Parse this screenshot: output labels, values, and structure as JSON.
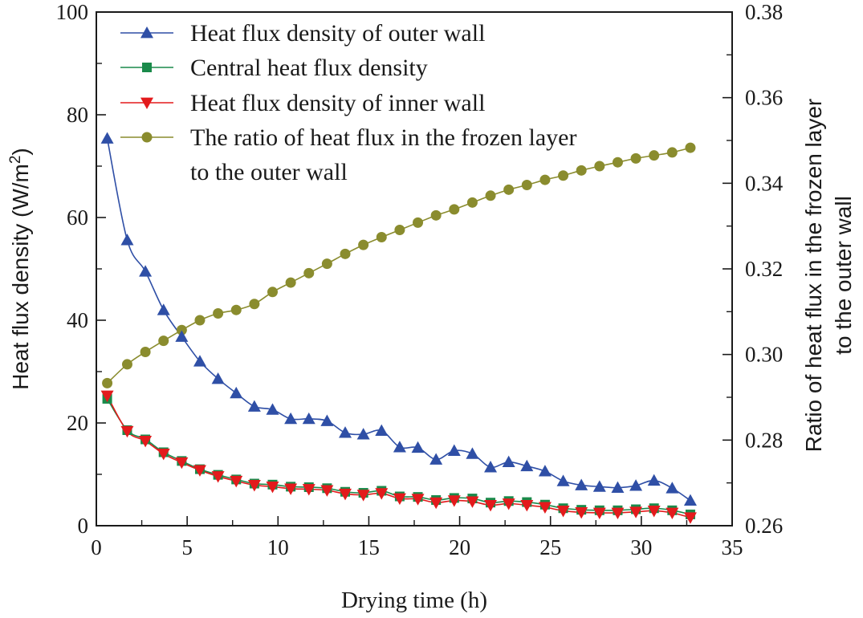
{
  "chart_data": {
    "type": "line",
    "title": "",
    "xlabel": "Drying time (h)",
    "ylabel": "Heat flux density (W/m",
    "ylabel_sup": "2",
    "ylabel_close": ")",
    "y2label_line1": "Ratio of heat flux in the frozen layer",
    "y2label_line2": "to the outer wall",
    "xlim": [
      0,
      35
    ],
    "ylim": [
      0,
      100
    ],
    "y2lim": [
      0.26,
      0.38
    ],
    "xticks": [
      "0",
      "5",
      "10",
      "15",
      "20",
      "25",
      "30",
      "35"
    ],
    "yticks": [
      "0",
      "20",
      "40",
      "60",
      "80",
      "100"
    ],
    "y2ticks": [
      "0.26",
      "0.28",
      "0.30",
      "0.32",
      "0.34",
      "0.36",
      "0.38"
    ],
    "legend_position": "top-left",
    "x": [
      0.6,
      1.7,
      2.7,
      3.7,
      4.7,
      5.7,
      6.7,
      7.7,
      8.7,
      9.7,
      10.7,
      11.7,
      12.7,
      13.7,
      14.7,
      15.7,
      16.7,
      17.7,
      18.7,
      19.7,
      20.7,
      21.7,
      22.7,
      23.7,
      24.7,
      25.7,
      26.7,
      27.7,
      28.7,
      29.7,
      30.7,
      31.7,
      32.7
    ],
    "series": [
      {
        "name": "Heat flux density of outer wall",
        "axis": "left",
        "color": "#2f4fa6",
        "marker": "triangle-up",
        "values": [
          75.4,
          55.6,
          49.5,
          42.0,
          36.8,
          32.0,
          28.6,
          25.8,
          23.2,
          22.6,
          20.8,
          20.8,
          20.4,
          18.1,
          17.8,
          18.5,
          15.3,
          15.2,
          12.9,
          14.6,
          14.0,
          11.4,
          12.4,
          11.6,
          10.6,
          8.7,
          7.9,
          7.6,
          7.4,
          7.8,
          8.8,
          7.3,
          4.9
        ]
      },
      {
        "name": "Central heat flux density",
        "axis": "left",
        "color": "#1a8a4a",
        "marker": "square",
        "values": [
          24.7,
          18.6,
          16.8,
          14.3,
          12.6,
          11.0,
          9.9,
          9.0,
          8.2,
          8.0,
          7.6,
          7.5,
          7.3,
          6.6,
          6.4,
          6.8,
          5.7,
          5.6,
          5.0,
          5.4,
          5.3,
          4.5,
          4.8,
          4.6,
          4.1,
          3.4,
          3.1,
          3.0,
          3.0,
          3.2,
          3.4,
          3.0,
          2.2
        ]
      },
      {
        "name": "Heat flux density of inner wall",
        "axis": "left",
        "color": "#e31a1c",
        "marker": "triangle-down",
        "values": [
          25.3,
          18.4,
          16.5,
          14.0,
          12.3,
          10.8,
          9.6,
          8.7,
          7.9,
          7.6,
          7.2,
          7.1,
          6.9,
          6.2,
          6.0,
          6.3,
          5.3,
          5.2,
          4.5,
          4.9,
          4.7,
          4.0,
          4.3,
          4.0,
          3.6,
          2.9,
          2.6,
          2.5,
          2.5,
          2.7,
          2.9,
          2.5,
          1.6
        ]
      },
      {
        "name": "The ratio of heat flux in the frozen layer",
        "name_line2": "to the outer wall",
        "axis": "right",
        "color": "#8a8c2e",
        "marker": "circle",
        "values": [
          0.2933,
          0.2977,
          0.3006,
          0.3032,
          0.3057,
          0.308,
          0.3096,
          0.3104,
          0.3118,
          0.3146,
          0.3168,
          0.319,
          0.3212,
          0.3235,
          0.3256,
          0.3274,
          0.3291,
          0.3308,
          0.3325,
          0.3339,
          0.3355,
          0.3371,
          0.3385,
          0.3396,
          0.3408,
          0.3418,
          0.343,
          0.344,
          0.3449,
          0.3458,
          0.3465,
          0.3472,
          0.3483
        ]
      }
    ]
  }
}
